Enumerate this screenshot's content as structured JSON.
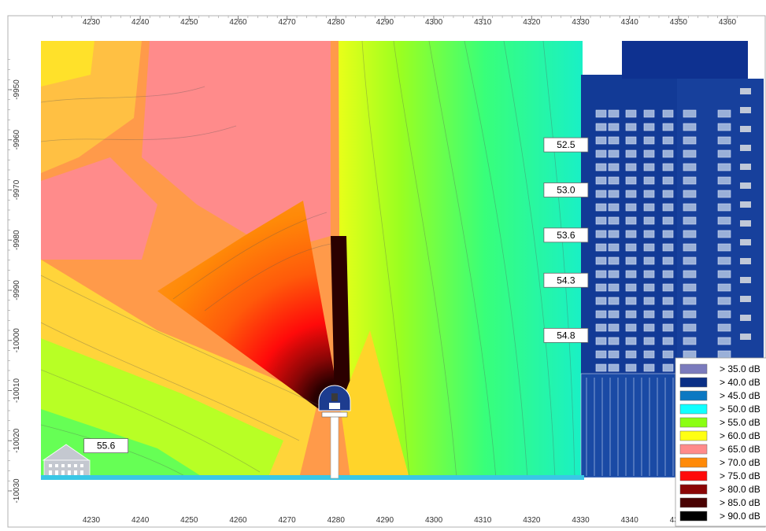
{
  "chart_data": {
    "type": "heatmap",
    "title": "",
    "xlabel": "",
    "ylabel": "",
    "x_ticks": [
      4230,
      4240,
      4250,
      4260,
      4270,
      4280,
      4290,
      4300,
      4310,
      4320,
      4330,
      4340,
      4350,
      4360
    ],
    "y_ticks": [
      -9950,
      -9960,
      -9970,
      -9980,
      -9990,
      -10000,
      -10010,
      -10020,
      -10030
    ],
    "xlim": [
      4221,
      4363
    ],
    "ylim": [
      -10031,
      -9940
    ],
    "source": {
      "x": 4280,
      "y": -10015
    },
    "contour_labels": [
      {
        "text": "52.5",
        "x": 4327,
        "y": -9961
      },
      {
        "text": "53.0",
        "x": 4327,
        "y": -9970
      },
      {
        "text": "53.6",
        "x": 4327,
        "y": -9979
      },
      {
        "text": "54.3",
        "x": 4327,
        "y": -9988
      },
      {
        "text": "54.8",
        "x": 4327,
        "y": -9999
      },
      {
        "text": "55.6",
        "x": 4233,
        "y": -10021
      }
    ],
    "legend": {
      "placement": "bottom-right",
      "entries": [
        {
          "label": "> 35.0 dB",
          "color": "#7b7bbd"
        },
        {
          "label": "> 40.0 dB",
          "color": "#0a2f86"
        },
        {
          "label": "> 45.0 dB",
          "color": "#0b78c2"
        },
        {
          "label": "> 50.0 dB",
          "color": "#11ffff"
        },
        {
          "label": "> 55.0 dB",
          "color": "#8bff12"
        },
        {
          "label": "> 60.0 dB",
          "color": "#ffff13"
        },
        {
          "label": "> 65.0 dB",
          "color": "#ff8b8b"
        },
        {
          "label": "> 70.0 dB",
          "color": "#ff8a08"
        },
        {
          "label": "> 75.0 dB",
          "color": "#ff0a0a"
        },
        {
          "label": "> 80.0 dB",
          "color": "#8b0606"
        },
        {
          "label": "> 85.0 dB",
          "color": "#4a0202"
        },
        {
          "label": "> 90.0 dB",
          "color": "#000000"
        }
      ]
    }
  }
}
